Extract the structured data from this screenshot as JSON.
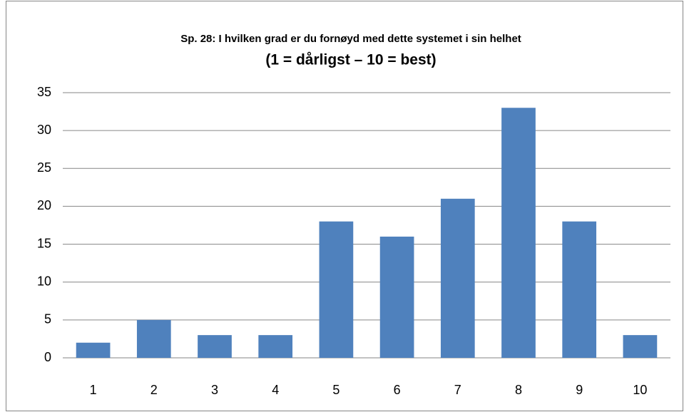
{
  "chart_data": {
    "type": "bar",
    "title": "Sp. 28: I hvilken grad er du fornøyd med dette systemet i sin helhet",
    "subtitle": "(1 = dårligst – 10 = best)",
    "categories": [
      "1",
      "2",
      "3",
      "4",
      "5",
      "6",
      "7",
      "8",
      "9",
      "10"
    ],
    "values": [
      2,
      5,
      3,
      3,
      18,
      16,
      21,
      33,
      18,
      3
    ],
    "color": "#4f81bd",
    "ylim": [
      0,
      35
    ],
    "yticks": [
      0,
      5,
      10,
      15,
      20,
      25,
      30,
      35
    ],
    "grid": true
  }
}
